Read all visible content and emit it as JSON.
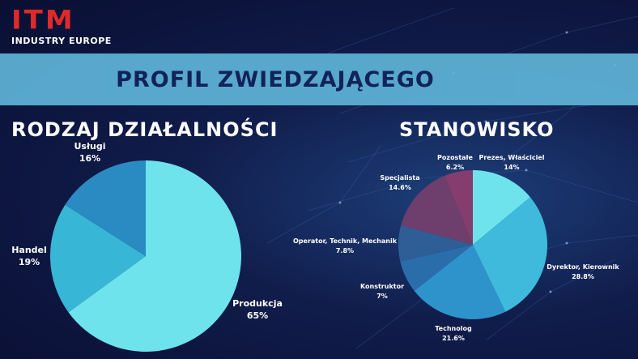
{
  "header": {
    "logo_text": "ITM",
    "logo_subtitle": "INDUSTRY EUROPE",
    "banner_title": "PROFIL ZWIEDZAJĄCEGO"
  },
  "chart_data": [
    {
      "type": "pie",
      "title": "RODZAJ DZIAŁALNOŚCI",
      "slices": [
        {
          "label": "Produkcja",
          "value": 65,
          "value_label": "65%",
          "color": "#6ee3ec"
        },
        {
          "label": "Handel",
          "value": 19,
          "value_label": "19%",
          "color": "#38b6d6"
        },
        {
          "label": "Usługi",
          "value": 16,
          "value_label": "16%",
          "color": "#2a8bc2"
        }
      ]
    },
    {
      "type": "pie",
      "title": "STANOWISKO",
      "slices": [
        {
          "label": "Prezes, Właściciel",
          "value": 14,
          "value_label": "14%",
          "color": "#6ee3ec"
        },
        {
          "label": "Dyrektor, Kierownik",
          "value": 28.8,
          "value_label": "28.8%",
          "color": "#3fbadc"
        },
        {
          "label": "Technolog",
          "value": 21.6,
          "value_label": "21.6%",
          "color": "#2f93cb"
        },
        {
          "label": "Konstruktor",
          "value": 7,
          "value_label": "7%",
          "color": "#2a6dab"
        },
        {
          "label": "Operator, Technik, Mechanik",
          "value": 7.8,
          "value_label": "7.8%",
          "color": "#2f5e97"
        },
        {
          "label": "Specjalista",
          "value": 14.6,
          "value_label": "14.6%",
          "color": "#6e3f6c"
        },
        {
          "label": "Pozostałe",
          "value": 6.2,
          "value_label": "6.2%",
          "color": "#843d6e"
        }
      ]
    }
  ]
}
